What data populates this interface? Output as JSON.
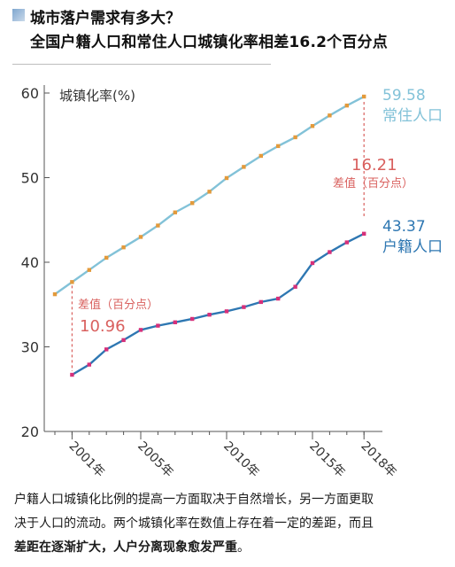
{
  "header": {
    "title": "城市落户需求有多大？",
    "subtitle": "全国户籍人口和常住人口城镇化率相差16.2个百分点"
  },
  "chart_data": {
    "type": "line",
    "ylabel": "城镇化率(%)",
    "ylim": [
      20,
      60
    ],
    "yticks": [
      "20",
      "30",
      "40",
      "50",
      "60"
    ],
    "x": [
      2000,
      2001,
      2002,
      2003,
      2004,
      2005,
      2006,
      2007,
      2008,
      2009,
      2010,
      2011,
      2012,
      2013,
      2014,
      2015,
      2016,
      2017,
      2018
    ],
    "xtick_labels": [
      "2001年",
      "2005年",
      "2010年",
      "2015年",
      "2018年"
    ],
    "series": [
      {
        "name": "常住人口",
        "color": "#82c2d8",
        "marker_color": "#e39a3b",
        "x": [
          2000,
          2001,
          2002,
          2003,
          2004,
          2005,
          2006,
          2007,
          2008,
          2009,
          2010,
          2011,
          2012,
          2013,
          2014,
          2015,
          2016,
          2017,
          2018
        ],
        "values": [
          36.22,
          37.66,
          39.09,
          40.53,
          41.76,
          42.99,
          44.34,
          45.89,
          46.99,
          48.34,
          49.95,
          51.27,
          52.57,
          53.73,
          54.77,
          56.1,
          57.35,
          58.52,
          59.58
        ],
        "end_label": "59.58"
      },
      {
        "name": "户籍人口",
        "color": "#2e77b2",
        "marker_color": "#d6307a",
        "x": [
          2001,
          2002,
          2003,
          2004,
          2005,
          2006,
          2007,
          2008,
          2009,
          2010,
          2011,
          2012,
          2013,
          2014,
          2015,
          2016,
          2017,
          2018
        ],
        "values": [
          26.7,
          27.9,
          29.7,
          30.8,
          32.0,
          32.5,
          32.9,
          33.3,
          33.8,
          34.2,
          34.7,
          35.3,
          35.7,
          37.1,
          39.9,
          41.2,
          42.35,
          43.37
        ],
        "end_label": "43.37"
      }
    ],
    "annotations": [
      {
        "label": "差值（百分点）",
        "value": "10.96",
        "year": 2001
      },
      {
        "label": "差值（百分点）",
        "value": "16.21",
        "year": 2018
      }
    ],
    "annotation_color": "#d9605e",
    "grid": false
  },
  "caption": {
    "line1": "户籍人口城镇化比例的提高一方面取决于自然增长，另一方面更取",
    "line2": "决于人口的流动。两个城镇化率在数值上存在着一定的差距，而且",
    "line3_bold": "差距在逐渐扩大，人户分离现象愈发严重",
    "line3_end": "。"
  }
}
